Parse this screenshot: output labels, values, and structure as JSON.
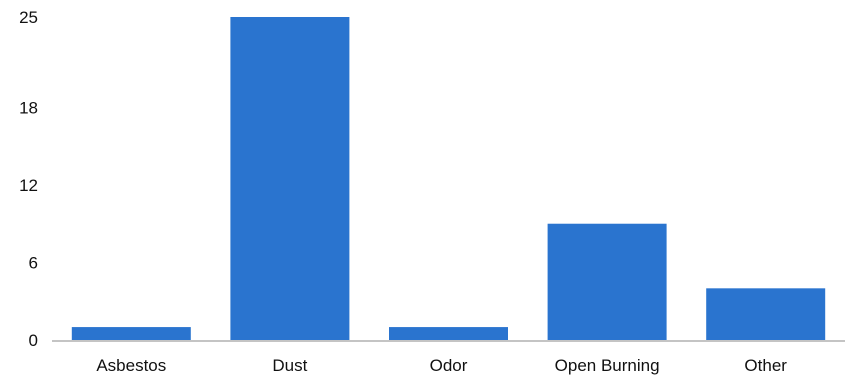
{
  "chart_data": {
    "type": "bar",
    "title": "",
    "xlabel": "",
    "ylabel": "",
    "categories": [
      "Asbestos",
      "Dust",
      "Odor",
      "Open Burning",
      "Other"
    ],
    "values": [
      1,
      25,
      1,
      9,
      4
    ],
    "y_ticks": [
      "0",
      "6",
      "12",
      "18",
      "25"
    ],
    "ylim": [
      0,
      25
    ],
    "grid": false,
    "legend": "none",
    "bar_color": "#2a74cf",
    "axis_color": "#b0b0b0"
  }
}
